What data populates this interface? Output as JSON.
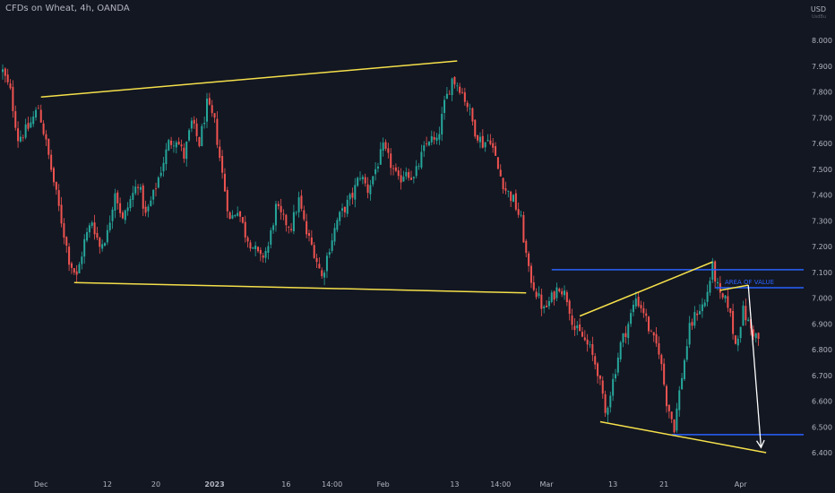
{
  "header": {
    "symbol_title": "CFDs on Wheat, 4h, OANDA",
    "currency": "USD",
    "currency_sub": "UsdBu"
  },
  "colors": {
    "background": "#131722",
    "grid": "#1e222d",
    "axis_text": "#b2b5be",
    "candle_up": "#26a69a",
    "candle_down": "#ef5350",
    "trendline_yellow": "#f5e04a",
    "level_blue": "#2962ff",
    "projection_arrow": "#ffffff",
    "annotation_text": "#2962ff"
  },
  "chart_data": {
    "type": "candlestick",
    "title": "CFDs on Wheat, 4h, OANDA",
    "symbol": "Wheat CFD",
    "timeframe": "4h",
    "broker": "OANDA",
    "y_unit": "USD",
    "ylim": [
      6.38,
      8.1
    ],
    "y_ticks": [
      8.0,
      7.9,
      7.8,
      7.7,
      7.6,
      7.5,
      7.4,
      7.3,
      7.2,
      7.1,
      7.0,
      6.9,
      6.8,
      6.7,
      6.6,
      6.5,
      6.4
    ],
    "y_tick_labels": [
      "8.000",
      "7.900",
      "7.800",
      "7.700",
      "7.600",
      "7.500",
      "7.400",
      "7.300",
      "7.200",
      "7.100",
      "7.000",
      "6.900",
      "6.800",
      "6.700",
      "6.600",
      "6.500",
      "6.400"
    ],
    "x_ticks": [
      {
        "label": "Dec",
        "bar": 15
      },
      {
        "label": "12",
        "bar": 41
      },
      {
        "label": "20",
        "bar": 60
      },
      {
        "label": "2023",
        "bar": 83
      },
      {
        "label": "16",
        "bar": 111
      },
      {
        "label": "14:00",
        "bar": 129
      },
      {
        "label": "Feb",
        "bar": 149
      },
      {
        "label": "13",
        "bar": 177
      },
      {
        "label": "14:00",
        "bar": 195
      },
      {
        "label": "Mar",
        "bar": 213
      },
      {
        "label": "13",
        "bar": 239
      },
      {
        "label": "21",
        "bar": 259
      },
      {
        "label": "Apr",
        "bar": 289
      }
    ],
    "grid": false,
    "price_path": [
      [
        0,
        7.88
      ],
      [
        3,
        7.8
      ],
      [
        6,
        7.62
      ],
      [
        10,
        7.66
      ],
      [
        14,
        7.74
      ],
      [
        17,
        7.6
      ],
      [
        20,
        7.45
      ],
      [
        23,
        7.3
      ],
      [
        26,
        7.15
      ],
      [
        29,
        7.08
      ],
      [
        32,
        7.22
      ],
      [
        35,
        7.3
      ],
      [
        38,
        7.2
      ],
      [
        41,
        7.25
      ],
      [
        44,
        7.42
      ],
      [
        47,
        7.3
      ],
      [
        50,
        7.38
      ],
      [
        53,
        7.45
      ],
      [
        56,
        7.32
      ],
      [
        59,
        7.4
      ],
      [
        62,
        7.5
      ],
      [
        65,
        7.6
      ],
      [
        68,
        7.62
      ],
      [
        71,
        7.55
      ],
      [
        74,
        7.68
      ],
      [
        77,
        7.6
      ],
      [
        80,
        7.75
      ],
      [
        83,
        7.68
      ],
      [
        86,
        7.48
      ],
      [
        89,
        7.3
      ],
      [
        92,
        7.35
      ],
      [
        95,
        7.25
      ],
      [
        98,
        7.2
      ],
      [
        101,
        7.15
      ],
      [
        104,
        7.2
      ],
      [
        107,
        7.35
      ],
      [
        110,
        7.3
      ],
      [
        113,
        7.28
      ],
      [
        116,
        7.38
      ],
      [
        119,
        7.25
      ],
      [
        122,
        7.18
      ],
      [
        125,
        7.08
      ],
      [
        128,
        7.2
      ],
      [
        131,
        7.3
      ],
      [
        134,
        7.35
      ],
      [
        137,
        7.4
      ],
      [
        140,
        7.48
      ],
      [
        143,
        7.42
      ],
      [
        146,
        7.5
      ],
      [
        149,
        7.58
      ],
      [
        152,
        7.52
      ],
      [
        155,
        7.45
      ],
      [
        158,
        7.5
      ],
      [
        161,
        7.46
      ],
      [
        164,
        7.55
      ],
      [
        167,
        7.62
      ],
      [
        170,
        7.6
      ],
      [
        173,
        7.75
      ],
      [
        176,
        7.85
      ],
      [
        179,
        7.82
      ],
      [
        182,
        7.75
      ],
      [
        185,
        7.65
      ],
      [
        188,
        7.6
      ],
      [
        191,
        7.62
      ],
      [
        194,
        7.5
      ],
      [
        197,
        7.42
      ],
      [
        200,
        7.38
      ],
      [
        203,
        7.3
      ],
      [
        206,
        7.1
      ],
      [
        209,
        7.02
      ],
      [
        212,
        6.95
      ],
      [
        215,
        7.0
      ],
      [
        218,
        7.05
      ],
      [
        221,
        7.0
      ],
      [
        224,
        6.88
      ],
      [
        227,
        6.85
      ],
      [
        230,
        6.8
      ],
      [
        233,
        6.72
      ],
      [
        236,
        6.55
      ],
      [
        239,
        6.68
      ],
      [
        242,
        6.82
      ],
      [
        245,
        6.9
      ],
      [
        248,
        7.0
      ],
      [
        251,
        6.95
      ],
      [
        254,
        6.85
      ],
      [
        257,
        6.8
      ],
      [
        260,
        6.6
      ],
      [
        263,
        6.5
      ],
      [
        266,
        6.7
      ],
      [
        269,
        6.88
      ],
      [
        272,
        6.95
      ],
      [
        275,
        6.98
      ],
      [
        278,
        7.12
      ],
      [
        281,
        7.0
      ],
      [
        284,
        6.98
      ],
      [
        287,
        6.82
      ],
      [
        290,
        6.95
      ],
      [
        293,
        6.88
      ],
      [
        296,
        6.84
      ]
    ],
    "bar_count": 297,
    "annotations": {
      "trendlines": [
        {
          "name": "upper-channel-line",
          "color": "yellow",
          "points": [
            [
              15,
              7.78
            ],
            [
              178,
              7.92
            ]
          ]
        },
        {
          "name": "lower-channel-line",
          "color": "yellow",
          "points": [
            [
              28,
              7.06
            ],
            [
              205,
              7.02
            ]
          ]
        },
        {
          "name": "wedge-upper-line",
          "color": "yellow",
          "points": [
            [
              226,
              6.93
            ],
            [
              278,
              7.14
            ]
          ]
        },
        {
          "name": "wedge-lower-line",
          "color": "yellow",
          "points": [
            [
              234,
              6.52
            ],
            [
              299,
              6.4
            ]
          ]
        },
        {
          "name": "area-top-line",
          "color": "yellow",
          "points": [
            [
              281,
              7.03
            ],
            [
              292,
              7.05
            ]
          ]
        }
      ],
      "horizontal_levels": [
        {
          "name": "resistance-level",
          "color": "blue",
          "value": 7.11,
          "from_bar": 215
        },
        {
          "name": "area-of-value-level",
          "color": "blue",
          "value": 7.04,
          "from_bar": 279
        },
        {
          "name": "support-level",
          "color": "blue",
          "value": 6.47,
          "from_bar": 262
        }
      ],
      "projection_arrow": {
        "from": [
          292,
          7.05
        ],
        "to": [
          297,
          6.42
        ],
        "color": "white"
      },
      "labels": [
        {
          "name": "area-of-value-label",
          "text": "AREA OF VALUE",
          "bar": 287,
          "value": 7.065
        }
      ]
    }
  }
}
